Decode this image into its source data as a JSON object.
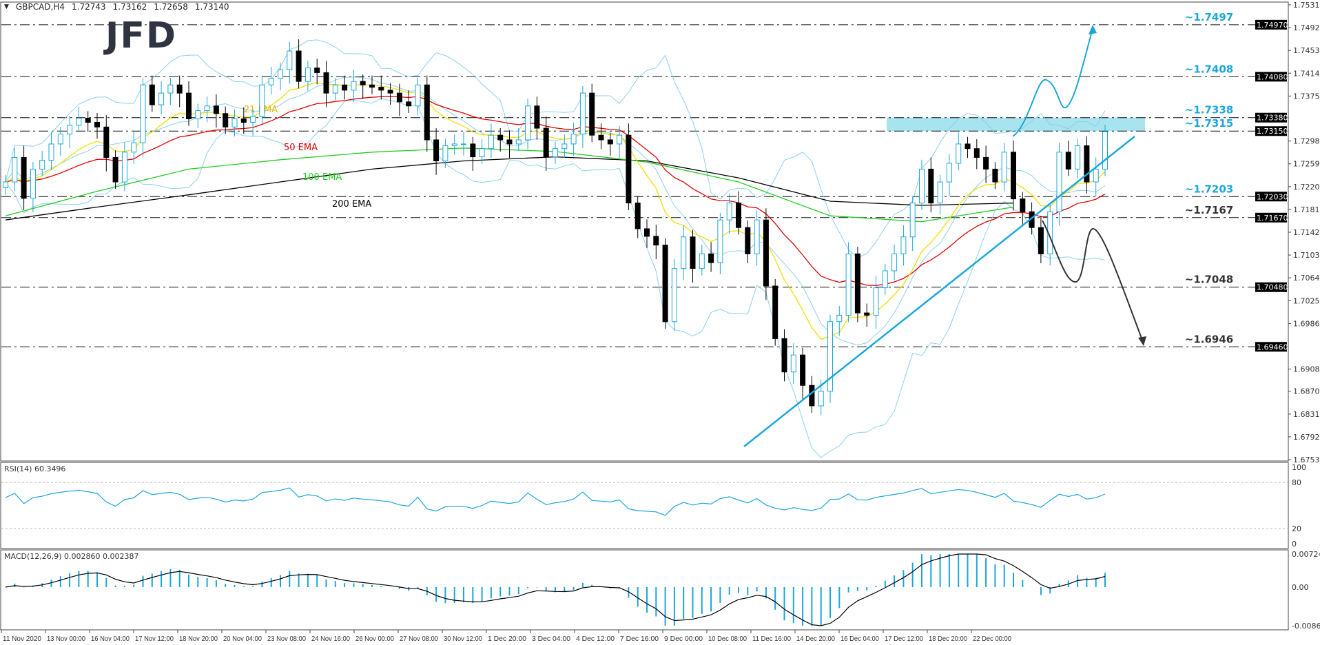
{
  "header": {
    "symbol": "GBPCAD,H4",
    "open": "1.72743",
    "high": "1.73162",
    "low": "1.72658",
    "close": "1.73140"
  },
  "logo": "JFD",
  "chart_data": {
    "type": "candlestick",
    "price_axis": {
      "min": 1.6753,
      "max": 1.7531,
      "ticks": [
        "1.75310",
        "1.74920",
        "1.74530",
        "1.74140",
        "1.73750",
        "1.72980",
        "1.72590",
        "1.72200",
        "1.71810",
        "1.71420",
        "1.71030",
        "1.70640",
        "1.70250",
        "1.69860",
        "1.69080",
        "1.68700",
        "1.68310",
        "1.67920",
        "1.67530"
      ]
    },
    "x_ticks": [
      "11 Nov 2020",
      "13 Nov 00:00",
      "16 Nov 04:00",
      "17 Nov 12:00",
      "18 Nov 20:00",
      "20 Nov 04:00",
      "23 Nov 08:00",
      "24 Nov 16:00",
      "26 Nov 00:00",
      "27 Nov 08:00",
      "30 Nov 12:00",
      "1 Dec 20:00",
      "3 Dec 04:00",
      "4 Dec 12:00",
      "7 Dec 16:00",
      "9 Dec 00:00",
      "10 Dec 08:00",
      "11 Dec 16:00",
      "14 Dec 20:00",
      "16 Dec 04:00",
      "17 Dec 12:00",
      "18 Dec 20:00",
      "22 Dec 00:00"
    ],
    "closes": [
      1.7228,
      1.727,
      1.72,
      1.725,
      1.7265,
      1.7293,
      1.731,
      1.7325,
      1.7337,
      1.733,
      1.7322,
      1.727,
      1.7228,
      1.7279,
      1.7295,
      1.7394,
      1.736,
      1.738,
      1.7394,
      1.738,
      1.7336,
      1.735,
      1.7358,
      1.7345,
      1.7322,
      1.7336,
      1.733,
      1.734,
      1.7394,
      1.7405,
      1.742,
      1.7452,
      1.74,
      1.7423,
      1.7415,
      1.738,
      1.7394,
      1.7385,
      1.74,
      1.7394,
      1.739,
      1.7385,
      1.738,
      1.7365,
      1.7358,
      1.7394,
      1.73,
      1.7264,
      1.729,
      1.7293,
      1.7293,
      1.7271,
      1.7285,
      1.7308,
      1.73,
      1.7293,
      1.73,
      1.7358,
      1.732,
      1.7271,
      1.7285,
      1.7293,
      1.731,
      1.738,
      1.7308,
      1.73,
      1.7293,
      1.7308,
      1.7192,
      1.7148,
      1.7135,
      1.712,
      1.6989,
      1.708,
      1.7134,
      1.708,
      1.7105,
      1.709,
      1.7163,
      1.7192,
      1.715,
      1.7105,
      1.7163,
      1.705,
      1.696,
      1.6903,
      1.6932,
      1.688,
      1.6845,
      1.687,
      1.6989,
      1.7,
      1.7105,
      1.7004,
      1.7,
      1.7047,
      1.7076,
      1.7105,
      1.7134,
      1.7192,
      1.725,
      1.7192,
      1.7228,
      1.726,
      1.7293,
      1.7285,
      1.727,
      1.725,
      1.7228,
      1.7279,
      1.7199,
      1.7177,
      1.715,
      1.7105,
      1.7177,
      1.7279,
      1.725,
      1.729,
      1.7228,
      1.725,
      1.7314
    ],
    "ema_100_every_10": [
      1.717,
      1.7212,
      1.725,
      1.7266,
      1.7279,
      1.7286,
      1.728,
      1.7262,
      1.7228,
      1.717,
      1.716,
      1.7185
    ],
    "ema_200_every_10": [
      1.7163,
      1.7185,
      1.7206,
      1.7228,
      1.725,
      1.7264,
      1.7271,
      1.7264,
      1.7235,
      1.7195,
      1.7188,
      1.7192
    ],
    "indicator_labels": [
      {
        "text": "21 EMA",
        "color": "#f0b400"
      },
      {
        "text": "50 EMA",
        "color": "#e00000"
      },
      {
        "text": "100 EMA",
        "color": "#22cc22"
      },
      {
        "text": "200 EMA",
        "color": "#000000"
      }
    ],
    "levels": [
      {
        "price": 1.7497,
        "label": "~1.7497",
        "axis": "1.74970",
        "color": "#1aa6dc"
      },
      {
        "price": 1.7408,
        "label": "~1.7408",
        "axis": "1.74080",
        "color": "#1aa6dc"
      },
      {
        "price": 1.7338,
        "label": "~1.7338",
        "axis": "1.73380",
        "color": "#1aa6dc"
      },
      {
        "price": 1.7315,
        "label": "~1.7315",
        "axis": "1.73150",
        "color": "#1aa6dc"
      },
      {
        "price": 1.7203,
        "label": "~1.7203",
        "axis": "1.72030",
        "color": "#1aa6dc"
      },
      {
        "price": 1.7167,
        "label": "~1.7167",
        "axis": "1.71670",
        "color": "#333333"
      },
      {
        "price": 1.7048,
        "label": "~1.7048",
        "axis": "1.70480",
        "color": "#333333"
      },
      {
        "price": 1.6946,
        "label": "~1.6946",
        "axis": "1.69460",
        "color": "#333333"
      }
    ],
    "resistance_zone": [
      1.7315,
      1.7338
    ],
    "rsi": {
      "label": "RSI(14) 60.3496",
      "ticks": [
        "100",
        "80",
        "20",
        "0"
      ]
    },
    "macd": {
      "label": "MACD(12,26,9) 0.002860 0.002387",
      "ticks": [
        "0.007245",
        "0.00",
        "-0.008609"
      ],
      "max": 0.007245,
      "min": -0.008609
    },
    "colors": {
      "bull": "#1aa6dc",
      "bear": "#000000",
      "bands": "#8ccfef",
      "rsi": "#1aa6dc",
      "zone": "#a8e4ef",
      "uptrend": "#1aa6dc",
      "down": "#333333"
    }
  }
}
